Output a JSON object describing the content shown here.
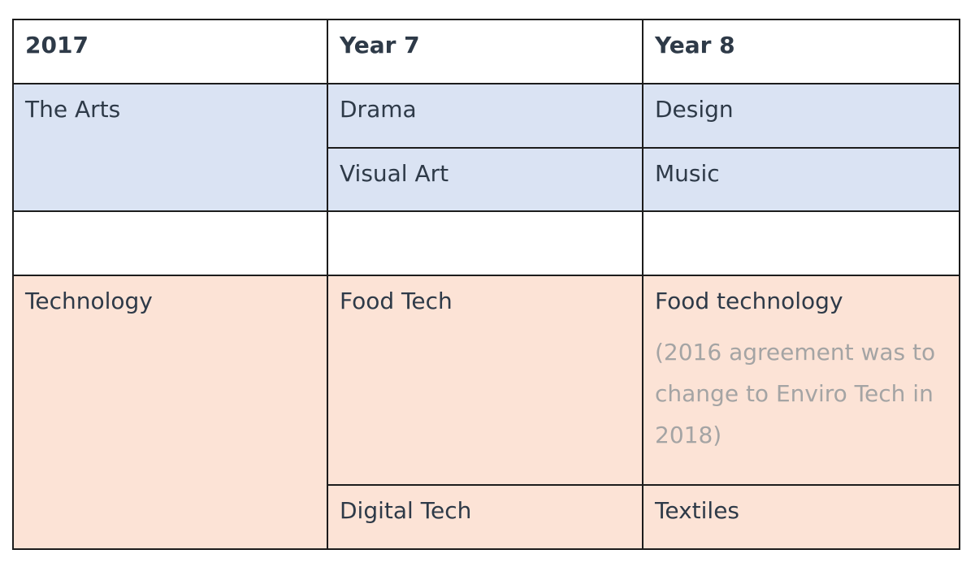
{
  "colors": {
    "arts_bg": "#dae3f3",
    "tech_bg": "#fce3d6",
    "note_color": "#a4a4a4",
    "border": "#1c1c1c",
    "text": "#2e3a48"
  },
  "header": {
    "col1": "2017",
    "col2": "Year 7",
    "col3": "Year 8"
  },
  "arts": {
    "category": "The Arts",
    "rows": [
      {
        "year7": "Drama",
        "year8": "Design"
      },
      {
        "year7": "Visual Art",
        "year8": "Music"
      }
    ]
  },
  "technology": {
    "category": "Technology",
    "rows": [
      {
        "year7": "Food Tech",
        "year8": "Food technology",
        "year8_note": "(2016 agreement was to  change to Enviro Tech in 2018)"
      },
      {
        "year7": "Digital Tech",
        "year8": "Textiles"
      }
    ]
  }
}
